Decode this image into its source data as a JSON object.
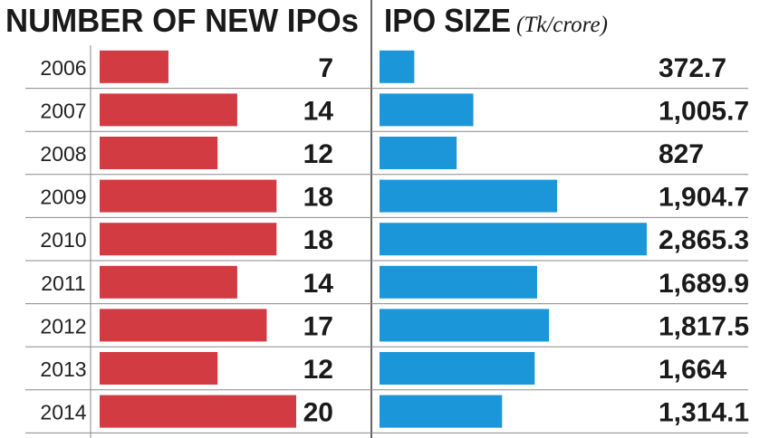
{
  "chart_data": [
    {
      "type": "bar",
      "orientation": "horizontal",
      "title": "NUMBER OF NEW IPOs",
      "categories": [
        "2006",
        "2007",
        "2008",
        "2009",
        "2010",
        "2011",
        "2012",
        "2013",
        "2014"
      ],
      "values": [
        7,
        14,
        12,
        18,
        18,
        14,
        17,
        12,
        20
      ],
      "value_labels": [
        "7",
        "14",
        "12",
        "18",
        "18",
        "14",
        "17",
        "12",
        "20"
      ],
      "xlim": [
        0,
        20
      ],
      "color": "#d33b43"
    },
    {
      "type": "bar",
      "orientation": "horizontal",
      "title": "IPO SIZE",
      "subtitle": "(Tk/crore)",
      "categories": [
        "2006",
        "2007",
        "2008",
        "2009",
        "2010",
        "2011",
        "2012",
        "2013",
        "2014"
      ],
      "values": [
        372.7,
        1005.7,
        827,
        1904.7,
        2865.3,
        1689.9,
        1817.5,
        1664,
        1314.1
      ],
      "value_labels": [
        "372.7",
        "1,005.7",
        "827",
        "1,904.7",
        "2,865.3",
        "1,689.9",
        "1,817.5",
        "1,664",
        "1,314.1"
      ],
      "xlim": [
        0,
        2865.3
      ],
      "color": "#1b97d9"
    }
  ]
}
